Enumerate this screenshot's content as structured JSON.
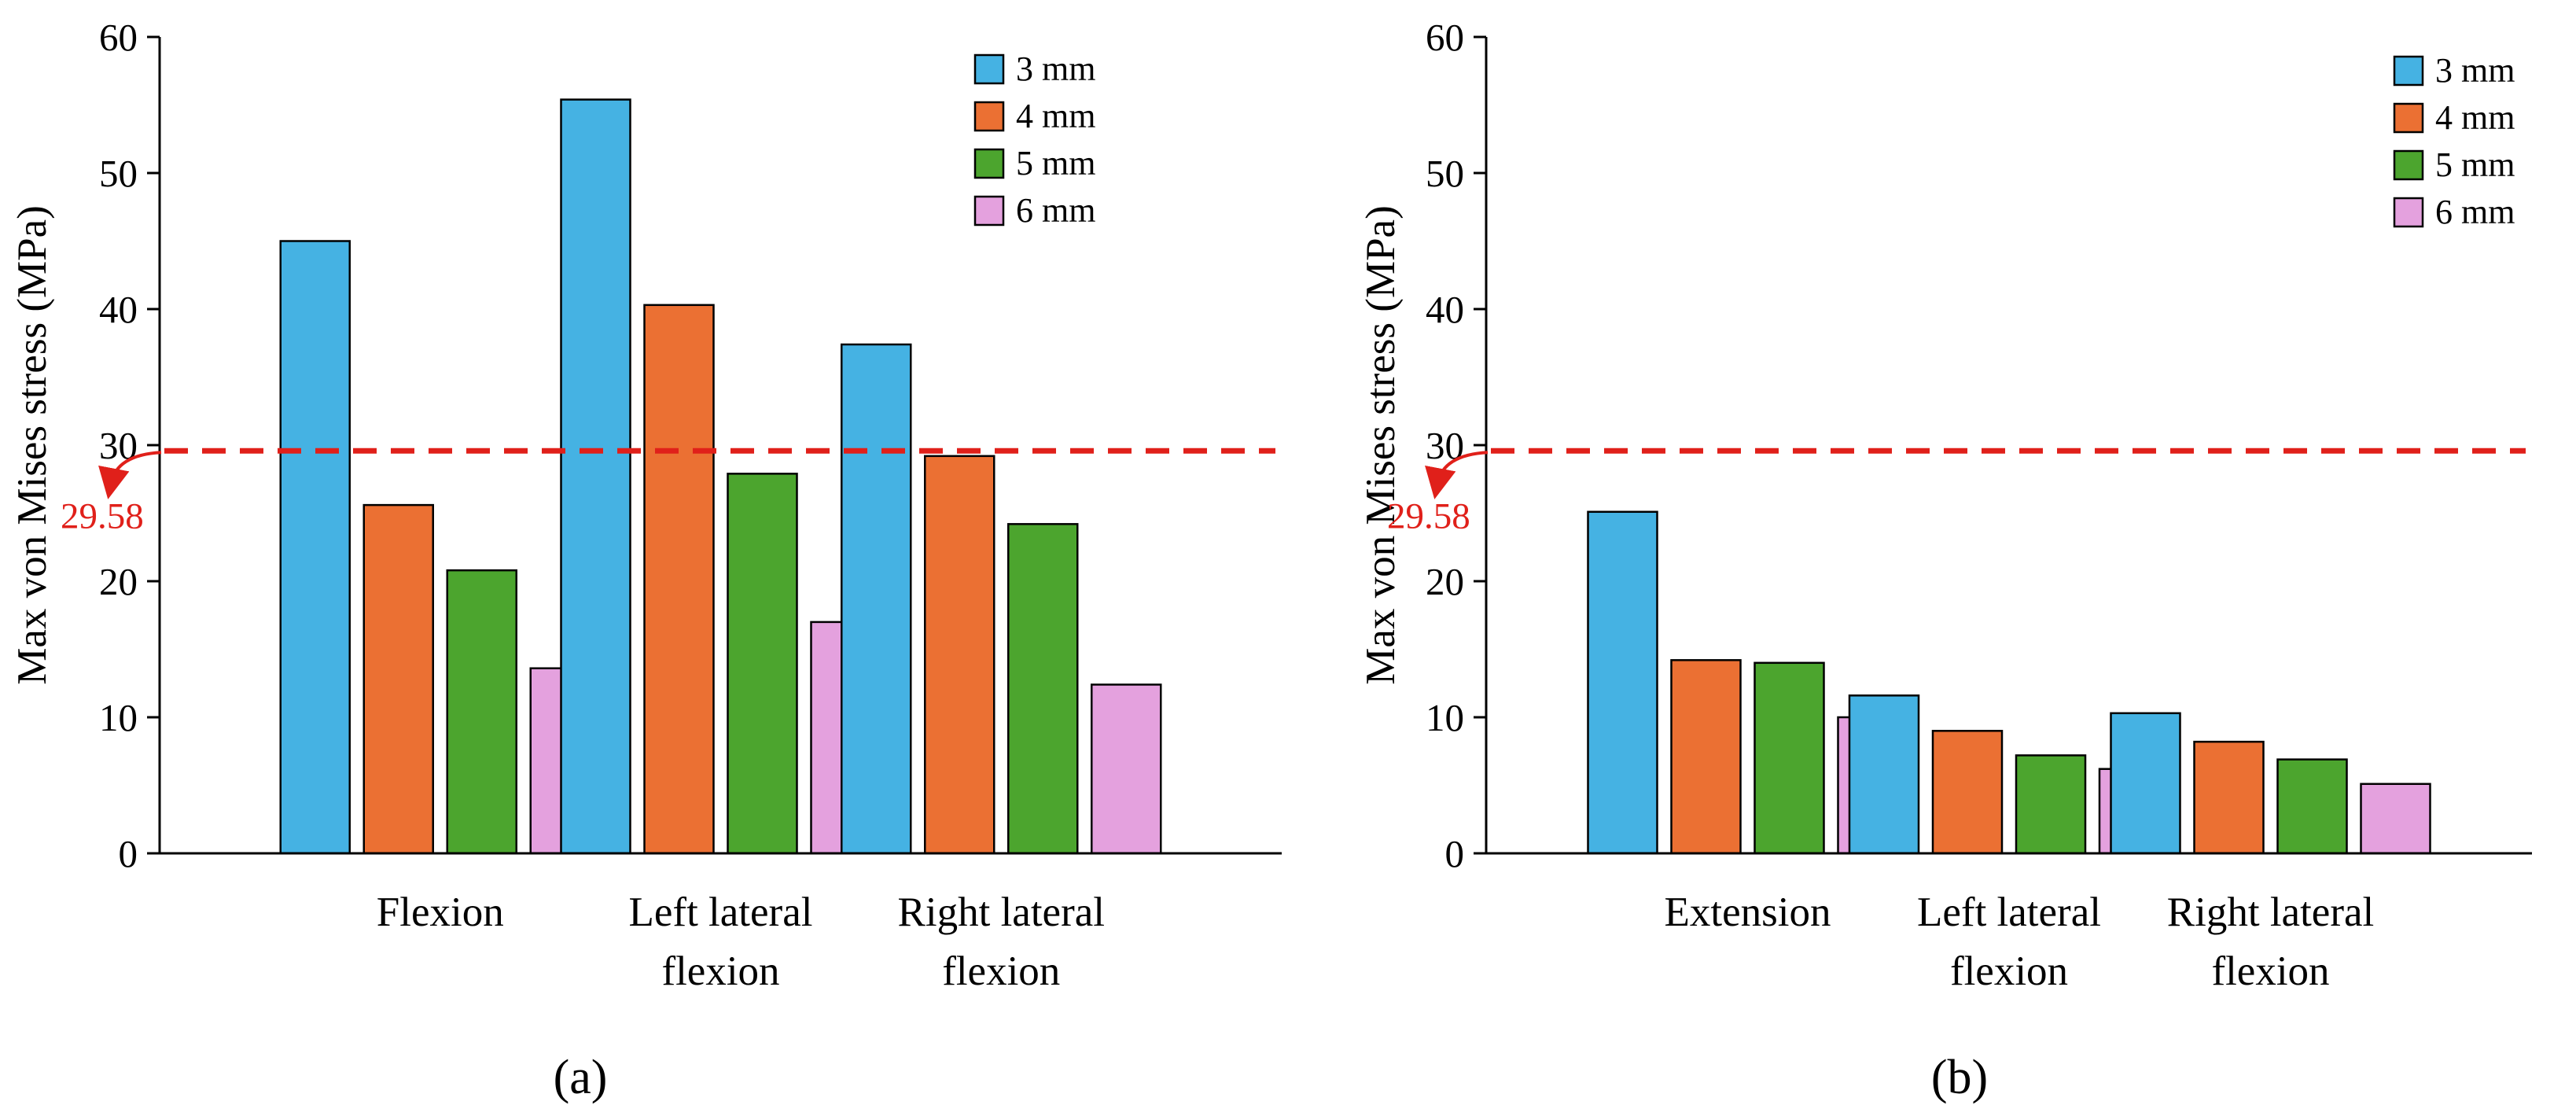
{
  "chart_data": [
    {
      "type": "bar",
      "panel_label": "(a)",
      "categories": [
        [
          "Flexion"
        ],
        [
          "Left lateral",
          "flexion"
        ],
        [
          "Right lateral",
          "flexion"
        ]
      ],
      "series": [
        {
          "name": "3 mm",
          "values": [
            45.0,
            55.4,
            37.4
          ]
        },
        {
          "name": "4 mm",
          "values": [
            25.6,
            40.3,
            29.2
          ]
        },
        {
          "name": "5 mm",
          "values": [
            20.8,
            27.9,
            24.2
          ]
        },
        {
          "name": "6 mm",
          "values": [
            13.6,
            17.0,
            12.4
          ]
        }
      ],
      "ylabel": "Max von Mises stress (MPa)",
      "ylim": [
        0,
        60
      ],
      "yticks": [
        "0",
        "10",
        "20",
        "30",
        "40",
        "50",
        "60"
      ],
      "reference_line": {
        "value": 29.58,
        "label": "29.58"
      },
      "legend_position": "top-right",
      "grid": false
    },
    {
      "type": "bar",
      "panel_label": "(b)",
      "categories": [
        [
          "Extension"
        ],
        [
          "Left lateral",
          "flexion"
        ],
        [
          "Right lateral",
          "flexion"
        ]
      ],
      "series": [
        {
          "name": "3 mm",
          "values": [
            25.1,
            11.6,
            10.3
          ]
        },
        {
          "name": "4 mm",
          "values": [
            14.2,
            9.0,
            8.2
          ]
        },
        {
          "name": "5 mm",
          "values": [
            14.0,
            7.2,
            6.9
          ]
        },
        {
          "name": "6 mm",
          "values": [
            10.0,
            6.2,
            5.1
          ]
        }
      ],
      "ylabel": "Max von Mises stress (MPa)",
      "ylim": [
        0,
        60
      ],
      "yticks": [
        "0",
        "10",
        "20",
        "30",
        "40",
        "50",
        "60"
      ],
      "reference_line": {
        "value": 29.58,
        "label": "29.58"
      },
      "legend_position": "top-right",
      "grid": false
    }
  ],
  "colors": {
    "series": [
      "#45b2e3",
      "#eb7033",
      "#4ca52e",
      "#e4a1de"
    ],
    "reference": "#e0201a"
  }
}
